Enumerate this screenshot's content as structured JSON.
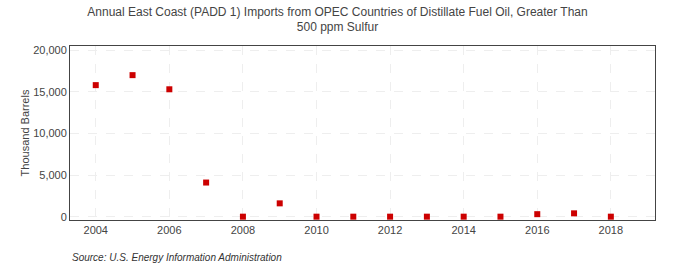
{
  "chart_data": {
    "type": "scatter",
    "title": "Annual East Coast (PADD 1) Imports from OPEC Countries of Distillate Fuel Oil, Greater Than\n500 ppm Sulfur",
    "ylabel": "Thousand Barrels",
    "annotations": [
      "Source: U.S. Energy Information Administration"
    ],
    "x": [
      2004,
      2005,
      2006,
      2007,
      2008,
      2009,
      2010,
      2011,
      2012,
      2013,
      2014,
      2015,
      2016,
      2017,
      2018
    ],
    "values": [
      15800,
      17000,
      15300,
      4100,
      0,
      1600,
      0,
      0,
      0,
      0,
      0,
      0,
      300,
      400,
      0
    ],
    "color": "#cc0000",
    "marker": "square",
    "xlim": [
      2003.3,
      2019.2
    ],
    "xticks": [
      2004,
      2006,
      2008,
      2010,
      2012,
      2014,
      2016,
      2018
    ],
    "ylim": [
      -400,
      20500
    ],
    "yticks": [
      0,
      {
        "value": 5000,
        "label": "5,000"
      },
      {
        "value": 10000,
        "label": "10,000"
      },
      {
        "value": 15000,
        "label": "15,000"
      },
      {
        "value": 20000,
        "label": "20,000"
      }
    ],
    "grid": true
  }
}
